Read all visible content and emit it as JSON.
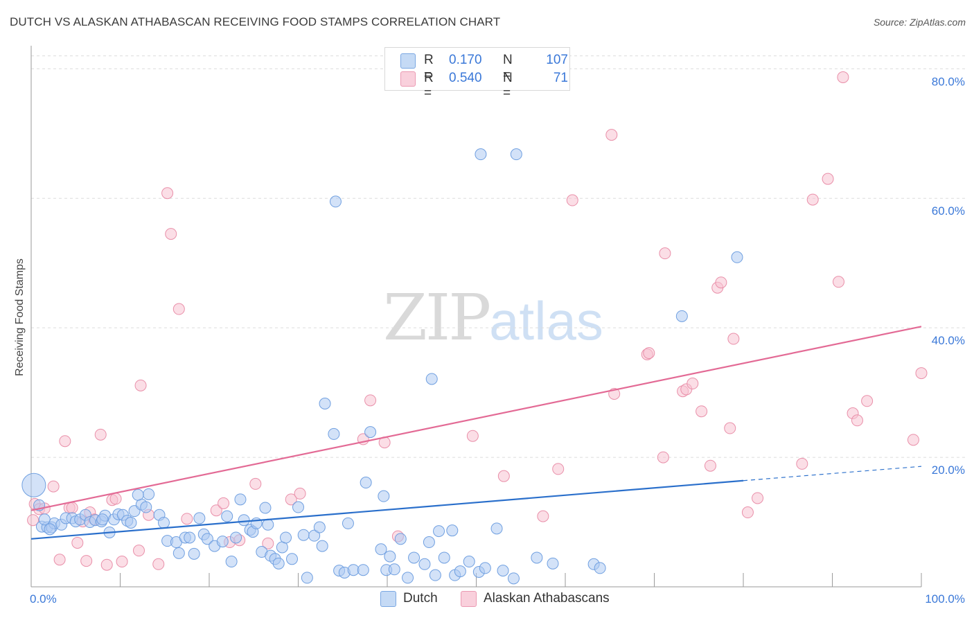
{
  "title": "DUTCH VS ALASKAN ATHABASCAN RECEIVING FOOD STAMPS CORRELATION CHART",
  "source": "Source: ZipAtlas.com",
  "watermark": {
    "zip": "ZIP",
    "atlas": "atlas"
  },
  "legend": {
    "rows": [
      {
        "r_label": "R =",
        "r_value": "0.170",
        "n_label": "N =",
        "n_value": "107",
        "color": "#aecbf2"
      },
      {
        "r_label": "R =",
        "r_value": "0.540",
        "n_label": "N =",
        "n_value": "71",
        "color": "#f7bfcf"
      }
    ]
  },
  "colors": {
    "dutch_fill": "#aecbf2",
    "dutch_stroke": "#6f9fe0",
    "dutch_line": "#2a6fcb",
    "alaskan_fill": "#f7c2d1",
    "alaskan_stroke": "#e98fa9",
    "alaskan_line": "#e36a95",
    "tick_label": "#3a78d8",
    "grid": "#dcdcdc"
  },
  "chart_data": {
    "type": "scatter",
    "title": "DUTCH VS ALASKAN ATHABASCAN RECEIVING FOOD STAMPS CORRELATION CHART",
    "xlabel": "",
    "ylabel": "Receiving Food Stamps",
    "xlim": [
      0,
      100
    ],
    "ylim": [
      0,
      82
    ],
    "x_tick_labels": [
      "0.0%",
      "100.0%"
    ],
    "y_ticks": [
      20,
      40,
      60,
      80
    ],
    "y_tick_labels": [
      "20.0%",
      "40.0%",
      "60.0%",
      "80.0%"
    ],
    "grid": true,
    "legend_position": "top-center",
    "series": [
      {
        "name": "Dutch",
        "r": 0.17,
        "n": 107,
        "trend": {
          "x": [
            0,
            80
          ],
          "y": [
            7.4,
            16.4
          ],
          "dashed_to": [
            100,
            18.6
          ]
        },
        "points": [
          [
            0.3,
            15.7
          ],
          [
            1.2,
            9.3
          ],
          [
            1.8,
            9.2
          ],
          [
            2.3,
            9.2
          ],
          [
            2.6,
            9.8
          ],
          [
            3.4,
            9.6
          ],
          [
            3.9,
            10.6
          ],
          [
            4.6,
            10.6
          ],
          [
            5.0,
            10.1
          ],
          [
            5.5,
            10.4
          ],
          [
            6.1,
            11.1
          ],
          [
            6.6,
            10.0
          ],
          [
            7.2,
            10.3
          ],
          [
            7.9,
            10.1
          ],
          [
            8.3,
            11.0
          ],
          [
            8.8,
            8.4
          ],
          [
            9.3,
            10.4
          ],
          [
            9.8,
            11.2
          ],
          [
            10.3,
            11.1
          ],
          [
            10.8,
            10.2
          ],
          [
            11.6,
            11.7
          ],
          [
            12.4,
            12.7
          ],
          [
            12.9,
            12.3
          ],
          [
            13.2,
            14.3
          ],
          [
            12.0,
            14.2
          ],
          [
            14.4,
            11.1
          ],
          [
            14.9,
            9.9
          ],
          [
            15.3,
            7.1
          ],
          [
            16.3,
            6.9
          ],
          [
            16.6,
            5.2
          ],
          [
            17.3,
            7.6
          ],
          [
            17.8,
            7.6
          ],
          [
            18.3,
            5.1
          ],
          [
            18.9,
            10.6
          ],
          [
            19.4,
            8.1
          ],
          [
            19.8,
            7.4
          ],
          [
            20.6,
            6.3
          ],
          [
            21.5,
            7.0
          ],
          [
            22.0,
            10.9
          ],
          [
            22.5,
            3.9
          ],
          [
            23.0,
            7.6
          ],
          [
            23.5,
            13.5
          ],
          [
            23.9,
            10.3
          ],
          [
            24.6,
            8.8
          ],
          [
            24.9,
            8.5
          ],
          [
            25.3,
            9.8
          ],
          [
            25.9,
            5.4
          ],
          [
            26.3,
            12.2
          ],
          [
            26.6,
            9.6
          ],
          [
            26.9,
            4.8
          ],
          [
            27.4,
            4.3
          ],
          [
            27.8,
            3.6
          ],
          [
            28.2,
            6.1
          ],
          [
            28.6,
            7.6
          ],
          [
            29.3,
            4.3
          ],
          [
            30.0,
            12.3
          ],
          [
            30.6,
            8.0
          ],
          [
            31.0,
            1.4
          ],
          [
            31.8,
            7.9
          ],
          [
            32.4,
            9.2
          ],
          [
            32.7,
            6.3
          ],
          [
            33.0,
            28.3
          ],
          [
            34.2,
            59.5
          ],
          [
            34.0,
            23.6
          ],
          [
            34.6,
            2.5
          ],
          [
            35.2,
            2.2
          ],
          [
            35.6,
            9.8
          ],
          [
            36.2,
            2.6
          ],
          [
            37.3,
            2.6
          ],
          [
            37.6,
            16.1
          ],
          [
            38.1,
            23.9
          ],
          [
            39.3,
            5.8
          ],
          [
            39.6,
            14.0
          ],
          [
            39.9,
            2.6
          ],
          [
            40.3,
            4.7
          ],
          [
            40.8,
            2.7
          ],
          [
            41.5,
            7.4
          ],
          [
            42.3,
            1.4
          ],
          [
            43.0,
            4.5
          ],
          [
            44.2,
            3.5
          ],
          [
            44.7,
            6.9
          ],
          [
            45.4,
            1.8
          ],
          [
            45.0,
            32.1
          ],
          [
            45.8,
            8.6
          ],
          [
            46.4,
            4.5
          ],
          [
            47.3,
            8.7
          ],
          [
            47.6,
            1.8
          ],
          [
            48.2,
            2.4
          ],
          [
            49.2,
            3.9
          ],
          [
            50.3,
            2.3
          ],
          [
            50.5,
            66.8
          ],
          [
            51.0,
            2.9
          ],
          [
            52.3,
            9.0
          ],
          [
            53.0,
            2.5
          ],
          [
            54.2,
            1.3
          ],
          [
            54.5,
            66.8
          ],
          [
            56.8,
            4.5
          ],
          [
            58.6,
            3.6
          ],
          [
            63.2,
            3.5
          ],
          [
            63.9,
            2.9
          ],
          [
            73.1,
            41.8
          ],
          [
            79.3,
            50.9
          ],
          [
            0.9,
            12.6
          ],
          [
            1.5,
            10.4
          ],
          [
            2.1,
            8.9
          ],
          [
            8.0,
            10.4
          ],
          [
            11.2,
            9.9
          ]
        ]
      },
      {
        "name": "Alaskan Athabascans",
        "r": 0.54,
        "n": 71,
        "trend": {
          "x": [
            0,
            100
          ],
          "y": [
            11.8,
            40.2
          ]
        },
        "points": [
          [
            0.4,
            12.8
          ],
          [
            0.9,
            12.0
          ],
          [
            1.5,
            12.1
          ],
          [
            2.5,
            15.5
          ],
          [
            3.2,
            4.2
          ],
          [
            3.8,
            22.5
          ],
          [
            4.3,
            12.2
          ],
          [
            4.6,
            12.2
          ],
          [
            5.2,
            6.8
          ],
          [
            5.8,
            10.1
          ],
          [
            6.2,
            4.0
          ],
          [
            6.6,
            11.5
          ],
          [
            7.1,
            10.4
          ],
          [
            7.8,
            23.5
          ],
          [
            8.5,
            3.4
          ],
          [
            9.1,
            13.4
          ],
          [
            9.5,
            13.6
          ],
          [
            10.2,
            3.9
          ],
          [
            12.1,
            5.6
          ],
          [
            12.3,
            31.1
          ],
          [
            13.2,
            11.1
          ],
          [
            14.3,
            3.5
          ],
          [
            15.3,
            60.8
          ],
          [
            15.7,
            54.5
          ],
          [
            16.6,
            42.9
          ],
          [
            17.5,
            10.5
          ],
          [
            20.8,
            11.8
          ],
          [
            21.6,
            12.9
          ],
          [
            22.3,
            6.9
          ],
          [
            23.4,
            7.2
          ],
          [
            25.2,
            15.9
          ],
          [
            26.6,
            6.7
          ],
          [
            29.2,
            13.5
          ],
          [
            30.2,
            14.4
          ],
          [
            38.1,
            28.8
          ],
          [
            37.3,
            22.8
          ],
          [
            39.7,
            22.3
          ],
          [
            41.2,
            7.8
          ],
          [
            49.6,
            23.3
          ],
          [
            53.1,
            17.1
          ],
          [
            57.5,
            10.9
          ],
          [
            59.2,
            18.2
          ],
          [
            60.8,
            59.7
          ],
          [
            65.2,
            69.8
          ],
          [
            65.5,
            29.8
          ],
          [
            69.2,
            35.9
          ],
          [
            69.4,
            36.1
          ],
          [
            71.0,
            20.0
          ],
          [
            71.2,
            51.5
          ],
          [
            73.2,
            30.2
          ],
          [
            73.6,
            30.5
          ],
          [
            74.3,
            31.4
          ],
          [
            75.3,
            27.1
          ],
          [
            76.3,
            18.7
          ],
          [
            77.1,
            46.2
          ],
          [
            77.5,
            47.0
          ],
          [
            78.5,
            24.5
          ],
          [
            78.9,
            38.3
          ],
          [
            80.5,
            11.5
          ],
          [
            81.6,
            13.7
          ],
          [
            86.6,
            19.0
          ],
          [
            87.8,
            59.8
          ],
          [
            89.5,
            63.0
          ],
          [
            90.7,
            47.1
          ],
          [
            91.2,
            78.7
          ],
          [
            92.3,
            26.8
          ],
          [
            92.8,
            25.7
          ],
          [
            93.9,
            28.7
          ],
          [
            99.1,
            22.7
          ],
          [
            100.0,
            33.0
          ],
          [
            0.2,
            10.3
          ]
        ]
      }
    ]
  },
  "bottom_legend": [
    {
      "label": "Dutch",
      "color": "#aecbf2"
    },
    {
      "label": "Alaskan Athabascans",
      "color": "#f7c2d1"
    }
  ]
}
